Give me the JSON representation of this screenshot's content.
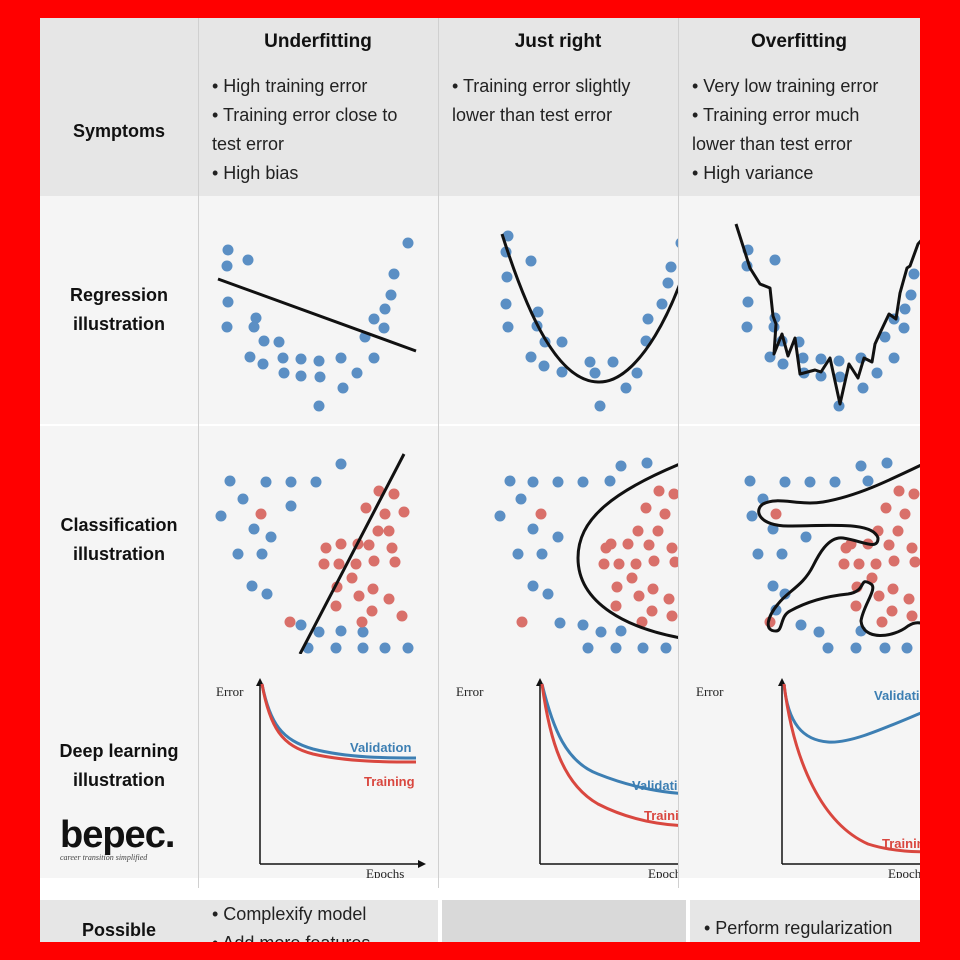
{
  "columns": [
    "Underfitting",
    "Just right",
    "Overfitting"
  ],
  "rows": {
    "symptoms": "Symptoms",
    "regression": [
      "Regression",
      "illustration"
    ],
    "classification": [
      "Classification",
      "illustration"
    ],
    "deep_learning": [
      "Deep learning",
      "illustration"
    ],
    "possible": "Possible"
  },
  "symptoms": {
    "underfitting": [
      "• High training error",
      "• Training error close to",
      "test error",
      "• High bias"
    ],
    "just_right": [
      "• Training error slightly",
      "lower than test error"
    ],
    "overfitting": [
      "• Very low training error",
      "• Training error much",
      "lower than test error",
      "• High variance"
    ]
  },
  "remedies": {
    "underfitting": [
      "• Complexify model",
      "• Add more features"
    ],
    "overfitting": [
      "• Perform regularization"
    ]
  },
  "deep_learning_labels": {
    "error": "Error",
    "epochs": "Epochs",
    "validation": "Validation",
    "training": "Training"
  },
  "logo": {
    "name": "bepec.",
    "tagline": "career transition simplified"
  },
  "colors": {
    "frame": "#ff0000",
    "blue_point": "#5b8fc4",
    "red_point": "#d9706a",
    "validation": "#3d7fb3",
    "training": "#d9473f"
  }
}
